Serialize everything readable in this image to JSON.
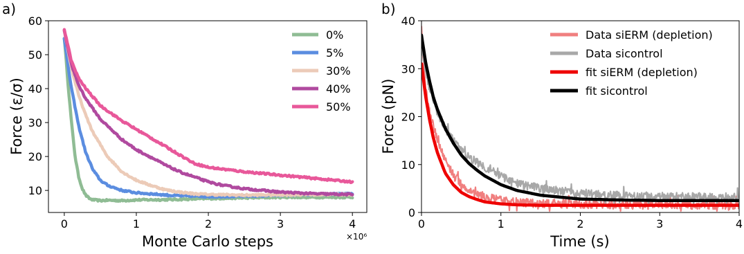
{
  "chart_data": [
    {
      "panel_label": "a)",
      "type": "line",
      "xlabel": "Monte Carlo steps",
      "ylabel": "Force (ε/σ)",
      "x_multiplier_label": "×10⁶",
      "xlim": [
        -0.22,
        4.2
      ],
      "ylim": [
        3.5,
        60
      ],
      "xticks": [
        0,
        1,
        2,
        3,
        4
      ],
      "xtick_labels": [
        "0",
        "1",
        "2",
        "3",
        "4"
      ],
      "yticks": [
        10,
        20,
        30,
        40,
        50,
        60
      ],
      "ytick_labels": [
        "10",
        "20",
        "30",
        "40",
        "50",
        "60"
      ],
      "grid": false,
      "legend_position": "upper right",
      "series": [
        {
          "name": "0%",
          "color": "#8fbc94",
          "x": [
            0,
            0.05,
            0.1,
            0.15,
            0.2,
            0.25,
            0.3,
            0.35,
            0.4,
            0.5,
            0.6,
            0.8,
            1.0,
            1.5,
            2.0,
            2.5,
            3.0,
            3.5,
            4.0
          ],
          "y": [
            55,
            42,
            30,
            20,
            14,
            10.5,
            8.5,
            7.6,
            7.2,
            7.0,
            7.1,
            7.0,
            7.2,
            7.3,
            7.6,
            7.8,
            8.0,
            8.0,
            8.0
          ]
        },
        {
          "name": "5%",
          "color": "#5b8de0",
          "x": [
            0,
            0.05,
            0.1,
            0.2,
            0.3,
            0.4,
            0.5,
            0.6,
            0.8,
            1.0,
            1.2,
            1.5,
            2.0,
            2.5,
            3.0,
            3.5,
            4.0
          ],
          "y": [
            55,
            47,
            40,
            29,
            21,
            16,
            13,
            11.5,
            10,
            9.3,
            9,
            8.5,
            8.2,
            8.3,
            8.6,
            8.8,
            9
          ]
        },
        {
          "name": "30%",
          "color": "#eccbb8",
          "x": [
            0,
            0.1,
            0.2,
            0.3,
            0.4,
            0.5,
            0.6,
            0.8,
            1.0,
            1.2,
            1.4,
            1.6,
            1.8,
            2.0,
            2.5,
            3.0,
            3.5,
            4.0
          ],
          "y": [
            57,
            46,
            38,
            32,
            27,
            23.5,
            20,
            15.5,
            13,
            11.5,
            10.2,
            9.5,
            9.0,
            8.8,
            8.6,
            8.7,
            8.8,
            8.8
          ]
        },
        {
          "name": "40%",
          "color": "#b04a9f",
          "x": [
            0,
            0.1,
            0.2,
            0.3,
            0.4,
            0.5,
            0.6,
            0.8,
            1.0,
            1.2,
            1.4,
            1.6,
            1.8,
            2.0,
            2.2,
            2.5,
            3.0,
            3.5,
            4.0
          ],
          "y": [
            57,
            47,
            41,
            37,
            34,
            31,
            29,
            25,
            22,
            19.8,
            17.5,
            15.5,
            14,
            12.5,
            11.5,
            10.5,
            9.5,
            9.0,
            8.8
          ]
        },
        {
          "name": "50%",
          "color": "#e8589a",
          "x": [
            0,
            0.1,
            0.2,
            0.3,
            0.4,
            0.5,
            0.6,
            0.8,
            1.0,
            1.2,
            1.4,
            1.6,
            1.8,
            2.0,
            2.5,
            3.0,
            3.5,
            4.0
          ],
          "y": [
            57.5,
            48,
            43,
            40,
            37.5,
            35,
            33.5,
            30.5,
            28,
            25.5,
            23,
            20.5,
            18,
            16.8,
            15.5,
            14.5,
            13.5,
            12.5
          ]
        }
      ]
    },
    {
      "panel_label": "b)",
      "type": "line",
      "xlabel": "Time (s)",
      "ylabel": "Force (pN)",
      "xlim": [
        0,
        4
      ],
      "ylim": [
        0,
        40
      ],
      "xticks": [
        0,
        1,
        2,
        3,
        4
      ],
      "xtick_labels": [
        "0",
        "1",
        "2",
        "3",
        "4"
      ],
      "yticks": [
        0,
        10,
        20,
        30,
        40
      ],
      "ytick_labels": [
        "0",
        "10",
        "20",
        "30",
        "40"
      ],
      "grid": false,
      "legend_position": "upper right",
      "series": [
        {
          "name": "Data siERM (depletion)",
          "color": "#f07f7f",
          "kind": "noisy",
          "noise": 0.9,
          "x": [
            0,
            0.02,
            0.05,
            0.1,
            0.2,
            0.3,
            0.4,
            0.5,
            0.6,
            0.8,
            1.0,
            1.2,
            1.5,
            2.0,
            2.5,
            3.0,
            3.5,
            4.0
          ],
          "y": [
            38,
            32,
            26,
            21,
            15,
            11,
            8,
            6,
            4.5,
            3.2,
            2.5,
            2.2,
            1.8,
            1.7,
            1.6,
            1.6,
            1.5,
            1.5
          ]
        },
        {
          "name": "Data sicontrol",
          "color": "#a8a8a8",
          "kind": "noisy",
          "noise": 0.9,
          "x": [
            0,
            0.05,
            0.1,
            0.2,
            0.3,
            0.4,
            0.5,
            0.6,
            0.7,
            0.8,
            1.0,
            1.2,
            1.5,
            2.0,
            2.5,
            3.0,
            3.5,
            4.0
          ],
          "y": [
            35,
            30,
            26,
            21,
            17.5,
            15,
            13,
            11.5,
            10.5,
            9.5,
            7.5,
            6,
            5,
            4,
            3.5,
            3.3,
            3.2,
            3.2
          ]
        },
        {
          "name": "fit siERM (depletion)",
          "color": "#ee0000",
          "x": [
            0,
            0.05,
            0.1,
            0.15,
            0.2,
            0.3,
            0.4,
            0.5,
            0.6,
            0.7,
            0.8,
            1.0,
            1.2,
            1.5,
            2.0,
            3.0,
            4.0
          ],
          "y": [
            31,
            24.5,
            19.5,
            15.5,
            12.5,
            8.2,
            5.8,
            4.2,
            3.3,
            2.7,
            2.2,
            1.8,
            1.6,
            1.5,
            1.5,
            1.5,
            1.5
          ]
        },
        {
          "name": "fit sicontrol",
          "color": "#000000",
          "x": [
            0,
            0.05,
            0.1,
            0.15,
            0.2,
            0.3,
            0.4,
            0.5,
            0.6,
            0.7,
            0.8,
            1.0,
            1.2,
            1.5,
            2.0,
            2.5,
            3.0,
            4.0
          ],
          "y": [
            37,
            31.5,
            27.5,
            24,
            21.5,
            17.5,
            14.5,
            12,
            10.2,
            8.8,
            7.6,
            5.8,
            4.6,
            3.6,
            2.8,
            2.6,
            2.5,
            2.5
          ]
        }
      ]
    }
  ]
}
